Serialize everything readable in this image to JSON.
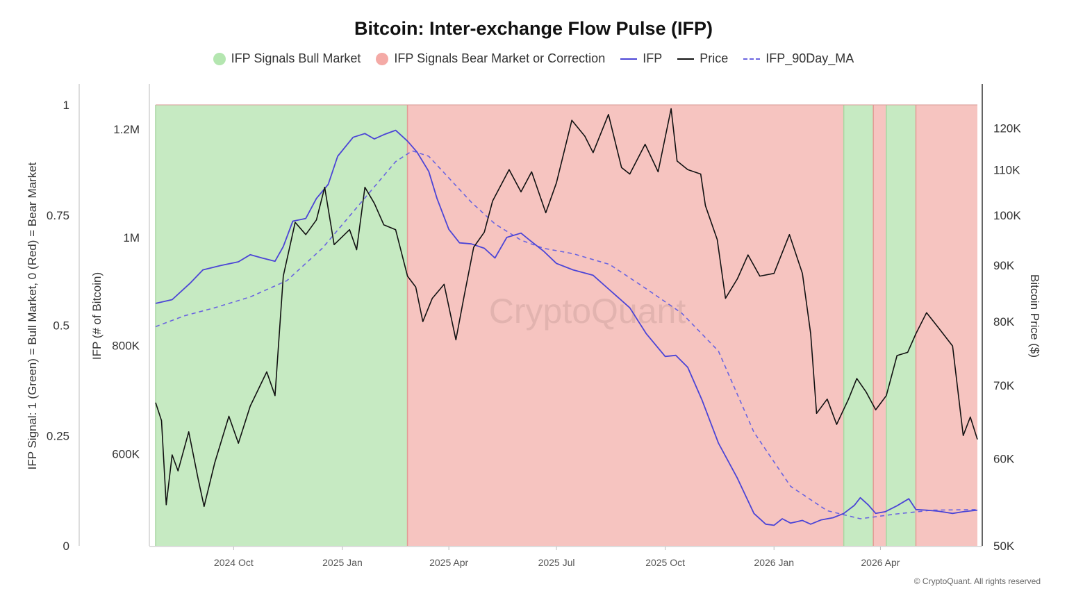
{
  "chart_data": {
    "type": "line",
    "title": "Bitcoin: Inter-exchange Flow Pulse (IFP)",
    "legend": [
      {
        "name": "IFP Signals Bull Market",
        "marker": "dot",
        "color": "#b4e6b0"
      },
      {
        "name": "IFP Signals Bear Market or Correction",
        "marker": "dot",
        "color": "#f4aaa6"
      },
      {
        "name": "IFP",
        "marker": "line",
        "color": "#4b44d6"
      },
      {
        "name": "Price",
        "marker": "line",
        "color": "#111111"
      },
      {
        "name": "IFP_90Day_MA",
        "marker": "dashed",
        "color": "#6a64e0"
      }
    ],
    "signal_axis": {
      "label": "IFP Signal: 1 (Green) = Bull Market, 0 (Red) = Bear Market",
      "ticks": [
        "0",
        "0.25",
        "0.5",
        "0.75",
        "1"
      ],
      "range": [
        0,
        1
      ]
    },
    "ifp_axis": {
      "label": "IFP (# of Bitcoin)",
      "ticks": [
        {
          "value": 600000,
          "label": "600K"
        },
        {
          "value": 800000,
          "label": "800K"
        },
        {
          "value": 1000000,
          "label": "1M"
        },
        {
          "value": 1200000,
          "label": "1.2M"
        }
      ],
      "range": [
        430000,
        1245000
      ]
    },
    "price_axis": {
      "label": "Bitcoin Price ($)",
      "scale": "log",
      "ticks": [
        {
          "value": 50000,
          "label": "50K"
        },
        {
          "value": 60000,
          "label": "60K"
        },
        {
          "value": 70000,
          "label": "70K"
        },
        {
          "value": 80000,
          "label": "80K"
        },
        {
          "value": 90000,
          "label": "90K"
        },
        {
          "value": 100000,
          "label": "100K"
        },
        {
          "value": 110000,
          "label": "110K"
        },
        {
          "value": 120000,
          "label": "120K"
        }
      ],
      "range": [
        50000,
        126000
      ]
    },
    "x_axis": {
      "range": [
        "2024-07-27",
        "2026-06-22"
      ],
      "ticks": [
        {
          "date": "2024-10-01",
          "label": "2024 Oct"
        },
        {
          "date": "2025-01-01",
          "label": "2025 Jan"
        },
        {
          "date": "2025-04-01",
          "label": "2025 Apr"
        },
        {
          "date": "2025-07-01",
          "label": "2025 Jul"
        },
        {
          "date": "2025-10-01",
          "label": "2025 Oct"
        },
        {
          "date": "2026-01-01",
          "label": "2026 Jan"
        },
        {
          "date": "2026-04-01",
          "label": "2026 Apr"
        }
      ]
    },
    "signal_bands": [
      {
        "start": "2024-07-27",
        "end": "2025-02-25",
        "signal": 1
      },
      {
        "start": "2025-02-25",
        "end": "2026-03-01",
        "signal": 0
      },
      {
        "start": "2026-03-01",
        "end": "2026-03-26",
        "signal": 1
      },
      {
        "start": "2026-03-26",
        "end": "2026-04-06",
        "signal": 0
      },
      {
        "start": "2026-04-06",
        "end": "2026-05-01",
        "signal": 1
      },
      {
        "start": "2026-05-01",
        "end": "2026-06-22",
        "signal": 0
      }
    ],
    "series": [
      {
        "name": "IFP",
        "points": [
          [
            "2024-07-27",
            878000
          ],
          [
            "2024-08-10",
            885000
          ],
          [
            "2024-08-25",
            915000
          ],
          [
            "2024-09-05",
            940000
          ],
          [
            "2024-09-20",
            948000
          ],
          [
            "2024-10-05",
            955000
          ],
          [
            "2024-10-15",
            968000
          ],
          [
            "2024-10-25",
            962000
          ],
          [
            "2024-11-05",
            956000
          ],
          [
            "2024-11-12",
            983000
          ],
          [
            "2024-11-20",
            1030000
          ],
          [
            "2024-12-01",
            1035000
          ],
          [
            "2024-12-10",
            1072000
          ],
          [
            "2024-12-20",
            1098000
          ],
          [
            "2024-12-28",
            1150000
          ],
          [
            "2025-01-10",
            1185000
          ],
          [
            "2025-01-20",
            1192000
          ],
          [
            "2025-01-28",
            1182000
          ],
          [
            "2025-02-05",
            1190000
          ],
          [
            "2025-02-15",
            1198000
          ],
          [
            "2025-02-25",
            1178000
          ],
          [
            "2025-03-05",
            1158000
          ],
          [
            "2025-03-15",
            1122000
          ],
          [
            "2025-03-22",
            1072000
          ],
          [
            "2025-04-01",
            1015000
          ],
          [
            "2025-04-10",
            990000
          ],
          [
            "2025-04-20",
            988000
          ],
          [
            "2025-05-01",
            980000
          ],
          [
            "2025-05-10",
            962000
          ],
          [
            "2025-05-20",
            1000000
          ],
          [
            "2025-06-01",
            1008000
          ],
          [
            "2025-06-10",
            992000
          ],
          [
            "2025-06-20",
            975000
          ],
          [
            "2025-07-01",
            952000
          ],
          [
            "2025-07-15",
            940000
          ],
          [
            "2025-08-01",
            930000
          ],
          [
            "2025-08-15",
            903000
          ],
          [
            "2025-09-01",
            870000
          ],
          [
            "2025-09-15",
            822000
          ],
          [
            "2025-10-01",
            780000
          ],
          [
            "2025-10-10",
            782000
          ],
          [
            "2025-10-20",
            760000
          ],
          [
            "2025-11-01",
            700000
          ],
          [
            "2025-11-15",
            620000
          ],
          [
            "2025-12-01",
            555000
          ],
          [
            "2025-12-15",
            490000
          ],
          [
            "2025-12-25",
            470000
          ],
          [
            "2026-01-01",
            468000
          ],
          [
            "2026-01-08",
            480000
          ],
          [
            "2026-01-15",
            472000
          ],
          [
            "2026-01-25",
            477000
          ],
          [
            "2026-02-01",
            470000
          ],
          [
            "2026-02-10",
            478000
          ],
          [
            "2026-02-20",
            482000
          ],
          [
            "2026-03-01",
            490000
          ],
          [
            "2026-03-10",
            505000
          ],
          [
            "2026-03-15",
            519000
          ],
          [
            "2026-03-22",
            505000
          ],
          [
            "2026-03-28",
            490000
          ],
          [
            "2026-04-05",
            493000
          ],
          [
            "2026-04-15",
            504000
          ],
          [
            "2026-04-25",
            517000
          ],
          [
            "2026-05-01",
            497000
          ],
          [
            "2026-05-10",
            496000
          ],
          [
            "2026-05-20",
            494000
          ],
          [
            "2026-06-01",
            490000
          ],
          [
            "2026-06-10",
            493000
          ],
          [
            "2026-06-22",
            496000
          ]
        ]
      },
      {
        "name": "Price",
        "points": [
          [
            "2024-07-27",
            67500
          ],
          [
            "2024-08-01",
            65000
          ],
          [
            "2024-08-05",
            54500
          ],
          [
            "2024-08-10",
            60500
          ],
          [
            "2024-08-15",
            58500
          ],
          [
            "2024-08-24",
            63500
          ],
          [
            "2024-09-01",
            57500
          ],
          [
            "2024-09-06",
            54300
          ],
          [
            "2024-09-15",
            59500
          ],
          [
            "2024-09-27",
            65600
          ],
          [
            "2024-10-05",
            62000
          ],
          [
            "2024-10-15",
            67000
          ],
          [
            "2024-10-29",
            72000
          ],
          [
            "2024-11-05",
            68500
          ],
          [
            "2024-11-12",
            88000
          ],
          [
            "2024-11-22",
            98500
          ],
          [
            "2024-12-01",
            96000
          ],
          [
            "2024-12-10",
            99000
          ],
          [
            "2024-12-17",
            106000
          ],
          [
            "2024-12-25",
            94000
          ],
          [
            "2025-01-07",
            97000
          ],
          [
            "2025-01-13",
            93000
          ],
          [
            "2025-01-20",
            106000
          ],
          [
            "2025-01-28",
            102500
          ],
          [
            "2025-02-05",
            98000
          ],
          [
            "2025-02-15",
            97000
          ],
          [
            "2025-02-25",
            88000
          ],
          [
            "2025-03-04",
            86000
          ],
          [
            "2025-03-10",
            80000
          ],
          [
            "2025-03-18",
            84000
          ],
          [
            "2025-03-28",
            86500
          ],
          [
            "2025-04-07",
            77000
          ],
          [
            "2025-04-14",
            84500
          ],
          [
            "2025-04-22",
            93500
          ],
          [
            "2025-05-01",
            96500
          ],
          [
            "2025-05-08",
            103000
          ],
          [
            "2025-05-22",
            110000
          ],
          [
            "2025-06-01",
            105000
          ],
          [
            "2025-06-10",
            109500
          ],
          [
            "2025-06-22",
            100500
          ],
          [
            "2025-07-01",
            107000
          ],
          [
            "2025-07-14",
            122000
          ],
          [
            "2025-07-25",
            118000
          ],
          [
            "2025-08-01",
            114000
          ],
          [
            "2025-08-14",
            123500
          ],
          [
            "2025-08-25",
            110500
          ],
          [
            "2025-09-01",
            109000
          ],
          [
            "2025-09-14",
            116000
          ],
          [
            "2025-09-25",
            109500
          ],
          [
            "2025-10-06",
            125000
          ],
          [
            "2025-10-11",
            112000
          ],
          [
            "2025-10-20",
            110000
          ],
          [
            "2025-10-31",
            109000
          ],
          [
            "2025-11-04",
            102000
          ],
          [
            "2025-11-14",
            95000
          ],
          [
            "2025-11-21",
            84000
          ],
          [
            "2025-12-01",
            87500
          ],
          [
            "2025-12-10",
            92000
          ],
          [
            "2025-12-20",
            88000
          ],
          [
            "2026-01-01",
            88500
          ],
          [
            "2026-01-14",
            96000
          ],
          [
            "2026-01-25",
            88500
          ],
          [
            "2026-02-01",
            78000
          ],
          [
            "2026-02-06",
            66000
          ],
          [
            "2026-02-15",
            68000
          ],
          [
            "2026-02-23",
            64500
          ],
          [
            "2026-03-05",
            68000
          ],
          [
            "2026-03-12",
            71000
          ],
          [
            "2026-03-20",
            69000
          ],
          [
            "2026-03-28",
            66500
          ],
          [
            "2026-04-06",
            68500
          ],
          [
            "2026-04-15",
            74500
          ],
          [
            "2026-04-24",
            75000
          ],
          [
            "2026-05-01",
            78000
          ],
          [
            "2026-05-10",
            81500
          ],
          [
            "2026-05-20",
            79000
          ],
          [
            "2026-06-01",
            76000
          ],
          [
            "2026-06-10",
            63000
          ],
          [
            "2026-06-16",
            65500
          ],
          [
            "2026-06-22",
            62500
          ]
        ]
      },
      {
        "name": "IFP_90Day_MA",
        "points": [
          [
            "2024-07-27",
            835000
          ],
          [
            "2024-08-20",
            855000
          ],
          [
            "2024-09-15",
            870000
          ],
          [
            "2024-10-15",
            890000
          ],
          [
            "2024-11-15",
            920000
          ],
          [
            "2024-12-15",
            980000
          ],
          [
            "2025-01-15",
            1060000
          ],
          [
            "2025-02-15",
            1140000
          ],
          [
            "2025-03-01",
            1160000
          ],
          [
            "2025-03-15",
            1150000
          ],
          [
            "2025-04-01",
            1110000
          ],
          [
            "2025-04-20",
            1065000
          ],
          [
            "2025-05-10",
            1025000
          ],
          [
            "2025-06-01",
            995000
          ],
          [
            "2025-06-20",
            980000
          ],
          [
            "2025-07-15",
            970000
          ],
          [
            "2025-08-15",
            950000
          ],
          [
            "2025-09-15",
            905000
          ],
          [
            "2025-10-15",
            860000
          ],
          [
            "2025-11-15",
            790000
          ],
          [
            "2025-12-15",
            640000
          ],
          [
            "2026-01-15",
            540000
          ],
          [
            "2026-02-15",
            495000
          ],
          [
            "2026-03-15",
            480000
          ],
          [
            "2026-04-15",
            489000
          ],
          [
            "2026-05-15",
            496000
          ],
          [
            "2026-06-22",
            497000
          ]
        ]
      }
    ],
    "watermark": "CryptoQuant",
    "grid": false
  },
  "footer": "© CryptoQuant. All rights reserved"
}
